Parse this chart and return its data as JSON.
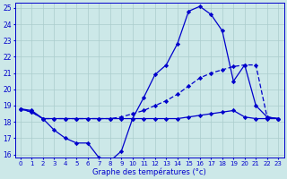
{
  "title": "Graphe des températures (°c)",
  "bg_color": "#cce8e8",
  "grid_color": "#aacccc",
  "line_color": "#0000cc",
  "hours": [
    0,
    1,
    2,
    3,
    4,
    5,
    6,
    7,
    8,
    9,
    10,
    11,
    12,
    13,
    14,
    15,
    16,
    17,
    18,
    19,
    20,
    21,
    22,
    23
  ],
  "temp_max": [
    18.8,
    18.7,
    18.2,
    17.5,
    17.0,
    16.7,
    16.7,
    15.8,
    15.6,
    16.2,
    18.2,
    19.5,
    20.9,
    21.5,
    22.8,
    24.8,
    25.1,
    24.6,
    23.6,
    20.5,
    21.5,
    19.0,
    18.3,
    18.2
  ],
  "temp_avg": [
    18.8,
    18.6,
    18.2,
    18.2,
    18.2,
    18.2,
    18.2,
    18.2,
    18.2,
    18.3,
    18.5,
    18.7,
    19.0,
    19.3,
    19.7,
    20.2,
    20.7,
    21.0,
    21.2,
    21.4,
    21.5,
    21.5,
    18.3,
    18.2
  ],
  "temp_min": [
    18.8,
    18.6,
    18.2,
    18.2,
    18.2,
    18.2,
    18.2,
    18.2,
    18.2,
    18.2,
    18.2,
    18.2,
    18.2,
    18.2,
    18.2,
    18.3,
    18.4,
    18.5,
    18.6,
    18.7,
    18.3,
    18.2,
    18.2,
    18.2
  ],
  "ylim_min": 16,
  "ylim_max": 25
}
